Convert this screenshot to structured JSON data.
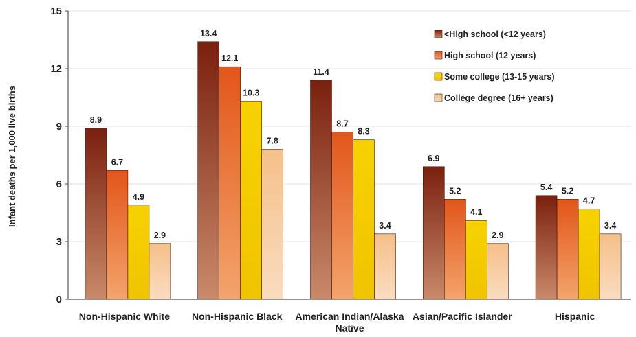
{
  "chart_data": {
    "type": "bar",
    "title": "",
    "xlabel": "",
    "ylabel": "Infant deaths per 1,000 live births",
    "ylim": [
      0,
      15
    ],
    "yticks": [
      0,
      3,
      6,
      9,
      12,
      15
    ],
    "grid": true,
    "legend_position": "top-right",
    "categories": [
      [
        "Non-Hispanic White"
      ],
      [
        "Non-Hispanic Black"
      ],
      [
        "American Indian/Alaska",
        "Native"
      ],
      [
        "Asian/Pacific Islander"
      ],
      [
        "Hispanic"
      ]
    ],
    "series": [
      {
        "name": "<High school (<12 years)",
        "color": "#8e2c14",
        "values": [
          8.9,
          13.4,
          11.4,
          6.9,
          5.4
        ]
      },
      {
        "name": "High school (12 years)",
        "color": "#e8661a",
        "values": [
          6.7,
          12.1,
          8.7,
          5.2,
          5.2
        ]
      },
      {
        "name": "Some college (13-15 years)",
        "color": "#f2c700",
        "values": [
          4.9,
          10.3,
          8.3,
          4.1,
          4.7
        ]
      },
      {
        "name": "College degree (16+ years)",
        "color": "#f6c79a",
        "values": [
          2.9,
          7.8,
          3.4,
          2.9,
          3.4
        ]
      }
    ]
  }
}
